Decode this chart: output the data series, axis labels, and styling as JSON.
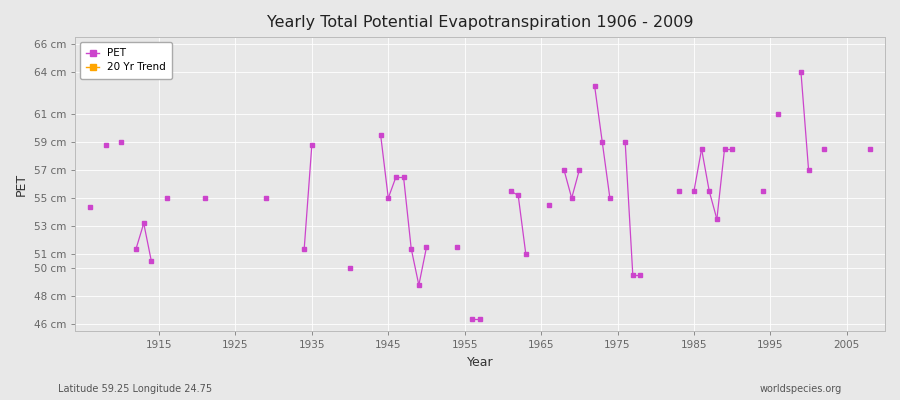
{
  "title": "Yearly Total Potential Evapotranspiration 1906 - 2009",
  "xlabel": "Year",
  "ylabel": "PET",
  "subtitle_left": "Latitude 59.25 Longitude 24.75",
  "subtitle_right": "worldspecies.org",
  "pet_color": "#CC44CC",
  "trend_color": "#FFA500",
  "background_color": "#E8E8E8",
  "grid_color": "#FFFFFF",
  "years": [
    1906,
    1907,
    1908,
    1909,
    1910,
    1911,
    1912,
    1913,
    1914,
    1915,
    1916,
    1917,
    1918,
    1919,
    1920,
    1921,
    1922,
    1923,
    1924,
    1925,
    1926,
    1927,
    1928,
    1929,
    1930,
    1931,
    1932,
    1933,
    1934,
    1935,
    1936,
    1937,
    1938,
    1939,
    1940,
    1941,
    1942,
    1943,
    1944,
    1945,
    1946,
    1947,
    1948,
    1949,
    1950,
    1951,
    1952,
    1953,
    1954,
    1955,
    1956,
    1957,
    1958,
    1959,
    1960,
    1961,
    1962,
    1963,
    1964,
    1965,
    1966,
    1967,
    1968,
    1969,
    1970,
    1971,
    1972,
    1973,
    1974,
    1975,
    1976,
    1977,
    1978,
    1979,
    1980,
    1981,
    1982,
    1983,
    1984,
    1985,
    1986,
    1987,
    1988,
    1989,
    1990,
    1991,
    1992,
    1993,
    1994,
    1995,
    1996,
    1997,
    1998,
    1999,
    2000,
    2001,
    2002,
    2003,
    2004,
    2005,
    2006,
    2007,
    2008,
    2009
  ],
  "pet_values": [
    54.4,
    null,
    58.8,
    null,
    null,
    null,
    null,
    null,
    null,
    null,
    59.0,
    null,
    51.4,
    null,
    null,
    null,
    null,
    null,
    null,
    null,
    null,
    null,
    null,
    null,
    null,
    null,
    null,
    null,
    null,
    null,
    null,
    null,
    null,
    null,
    null,
    null,
    null,
    null,
    null,
    null,
    null,
    null,
    null,
    null,
    null,
    null,
    null,
    null,
    null,
    null,
    null,
    null,
    null,
    null,
    null,
    null,
    null,
    null,
    null,
    null,
    null,
    null,
    null,
    null,
    null,
    null,
    null,
    null,
    null,
    null,
    null,
    null,
    null,
    null,
    null,
    null,
    null,
    null,
    null,
    null,
    null,
    null,
    null,
    null,
    null,
    null,
    null,
    null,
    null,
    null,
    null,
    null,
    null,
    null,
    null,
    null,
    null,
    null,
    null,
    null,
    null,
    null,
    null,
    null
  ],
  "ylim": [
    45.5,
    66.5
  ],
  "yticks": [
    46,
    48,
    50,
    51,
    53,
    55,
    57,
    59,
    61,
    64,
    66
  ],
  "ytick_labels": [
    "46 cm",
    "48 cm",
    "50 cm",
    "51 cm",
    "53 cm",
    "55 cm",
    "57 cm",
    "59 cm",
    "61 cm",
    "64 cm",
    "66 cm"
  ],
  "xlim": [
    1904,
    2010
  ],
  "xticks": [
    1915,
    1925,
    1935,
    1945,
    1955,
    1965,
    1975,
    1985,
    1995,
    2005
  ]
}
